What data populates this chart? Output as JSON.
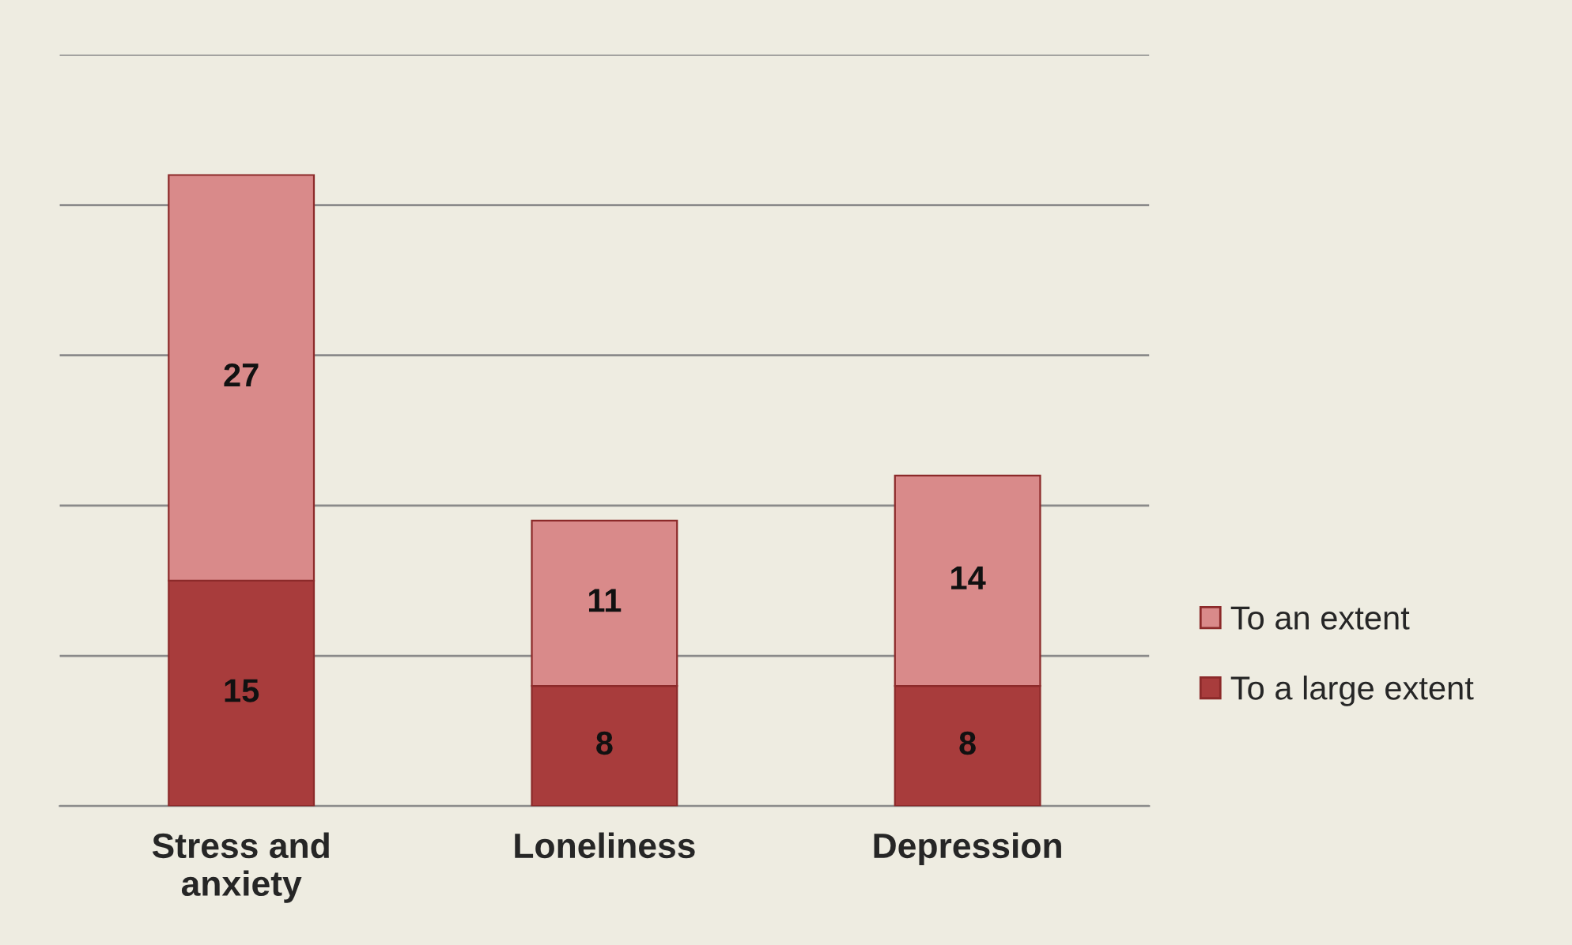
{
  "chart_data": {
    "type": "bar",
    "stacked": true,
    "categories": [
      "Stress and\nanxiety",
      "Loneliness",
      "Depression"
    ],
    "series": [
      {
        "name": "To a large extent",
        "color": "#a83c3c",
        "values": [
          15,
          8,
          8
        ]
      },
      {
        "name": "To an extent",
        "color": "#d98a8a",
        "values": [
          27,
          11,
          14
        ]
      }
    ],
    "ylim": [
      0,
      50
    ],
    "yticks": [
      {
        "value": 0,
        "label": null
      },
      {
        "value": 10,
        "label": null
      },
      {
        "value": 20,
        "label": null
      },
      {
        "value": 30,
        "label": null
      },
      {
        "value": 40,
        "label": null
      },
      {
        "value": 50,
        "label": null
      }
    ],
    "tick_labels": "x",
    "grid": "y",
    "legend": "right",
    "data_labels": true
  }
}
